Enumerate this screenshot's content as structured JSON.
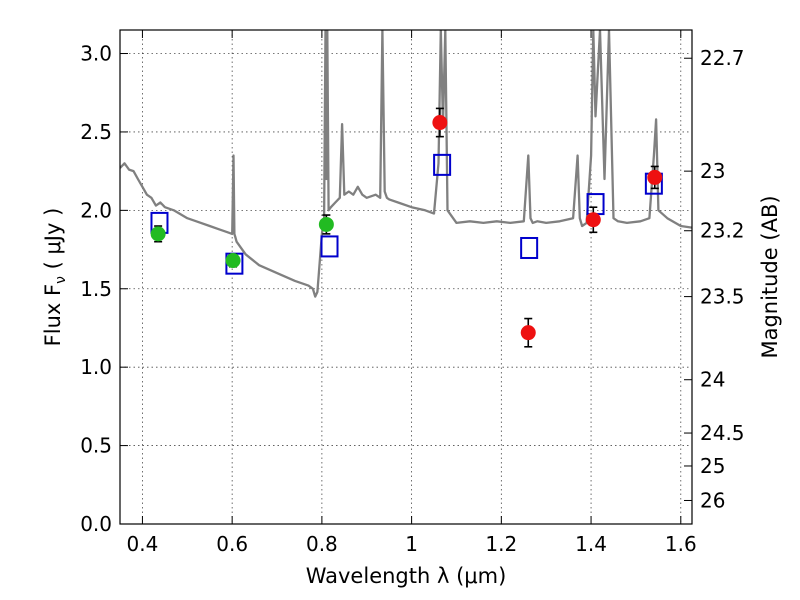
{
  "chart_data": {
    "type": "scatter",
    "title": "",
    "xlabel": "Wavelength  λ (μm)",
    "ylabel": "Flux  F",
    "ylabel_subscript": "ν",
    "ylabel_unit": "  ( μJy )",
    "y2label": "Magnitude (AB)",
    "xlim": [
      0.35,
      1.625
    ],
    "ylim": [
      0,
      3.15
    ],
    "grid": true,
    "x_ticks": [
      0.4,
      0.6,
      0.8,
      1.0,
      1.2,
      1.4,
      1.6
    ],
    "x_tick_labels": [
      "0.4",
      "0.6",
      "0.8",
      "1",
      "1.2",
      "1.4",
      "1.6"
    ],
    "y_ticks": [
      0.0,
      0.5,
      1.0,
      1.5,
      2.0,
      2.5,
      3.0
    ],
    "y_tick_labels": [
      "0.0",
      "0.5",
      "1.0",
      "1.5",
      "2.0",
      "2.5",
      "3.0"
    ],
    "y2_ticks": [
      {
        "label": "22.7",
        "flux": 2.97
      },
      {
        "label": "23",
        "flux": 2.25
      },
      {
        "label": "23.2",
        "flux": 1.87
      },
      {
        "label": "23.5",
        "flux": 1.45
      },
      {
        "label": "24",
        "flux": 0.92
      },
      {
        "label": "24.5",
        "flux": 0.58
      },
      {
        "label": "25",
        "flux": 0.37
      },
      {
        "label": "26",
        "flux": 0.15
      }
    ],
    "series": [
      {
        "marker": "line",
        "color": "#808080",
        "x": [
          0.35,
          0.36,
          0.37,
          0.38,
          0.39,
          0.4,
          0.41,
          0.42,
          0.43,
          0.44,
          0.45,
          0.47,
          0.5,
          0.52,
          0.55,
          0.57,
          0.59,
          0.6,
          0.603,
          0.605,
          0.607,
          0.61,
          0.63,
          0.66,
          0.7,
          0.74,
          0.77,
          0.78,
          0.785,
          0.79,
          0.8,
          0.805,
          0.808,
          0.81,
          0.812,
          0.815,
          0.82,
          0.83,
          0.84,
          0.845,
          0.85,
          0.86,
          0.87,
          0.88,
          0.89,
          0.9,
          0.92,
          0.93,
          0.935,
          0.94,
          0.945,
          0.95,
          0.97,
          1.0,
          1.03,
          1.05,
          1.06,
          1.065,
          1.07,
          1.075,
          1.08,
          1.1,
          1.13,
          1.16,
          1.19,
          1.22,
          1.25,
          1.26,
          1.265,
          1.27,
          1.28,
          1.3,
          1.33,
          1.36,
          1.37,
          1.375,
          1.38,
          1.39,
          1.4,
          1.405,
          1.41,
          1.42,
          1.43,
          1.44,
          1.45,
          1.46,
          1.48,
          1.51,
          1.53,
          1.54,
          1.545,
          1.55,
          1.57,
          1.6,
          1.625
        ],
        "y": [
          2.27,
          2.3,
          2.26,
          2.25,
          2.2,
          2.15,
          2.1,
          2.08,
          2.03,
          2.05,
          2.02,
          2.0,
          1.95,
          1.93,
          1.9,
          1.88,
          1.86,
          1.85,
          2.35,
          1.85,
          1.83,
          1.8,
          1.72,
          1.65,
          1.6,
          1.55,
          1.52,
          1.5,
          1.45,
          1.48,
          1.85,
          1.95,
          3.15,
          2.2,
          3.15,
          2.0,
          2.02,
          2.05,
          2.08,
          2.55,
          2.1,
          2.12,
          2.1,
          2.15,
          2.1,
          2.08,
          2.1,
          2.08,
          3.15,
          2.12,
          2.08,
          2.07,
          2.05,
          2.02,
          2.0,
          1.98,
          2.3,
          3.15,
          2.55,
          3.15,
          2.0,
          1.92,
          1.93,
          1.92,
          1.93,
          1.92,
          1.93,
          2.35,
          1.95,
          1.92,
          1.93,
          1.92,
          1.93,
          1.95,
          2.35,
          1.95,
          1.9,
          1.92,
          2.35,
          3.15,
          2.6,
          3.15,
          2.2,
          3.15,
          1.95,
          1.93,
          1.92,
          1.93,
          1.95,
          2.35,
          2.58,
          2.0,
          1.95,
          1.9,
          1.89
        ]
      },
      {
        "marker": "open-square",
        "color": "#0000cc",
        "x": [
          0.438,
          0.605,
          0.817,
          1.068,
          1.262,
          1.41,
          1.54
        ],
        "y": [
          1.92,
          1.66,
          1.77,
          2.29,
          1.76,
          2.04,
          2.17
        ]
      },
      {
        "marker": "filled-circle",
        "color": "#22bb22",
        "x": [
          0.435,
          0.602,
          0.81
        ],
        "y": [
          1.85,
          1.68,
          1.91
        ],
        "yerr": [
          0.05,
          0.04,
          0.06
        ]
      },
      {
        "marker": "filled-circle",
        "color": "#ee1111",
        "x": [
          1.063,
          1.26,
          1.405,
          1.542
        ],
        "y": [
          2.56,
          1.22,
          1.94,
          2.21
        ],
        "yerr": [
          0.09,
          0.09,
          0.08,
          0.07
        ]
      }
    ]
  }
}
